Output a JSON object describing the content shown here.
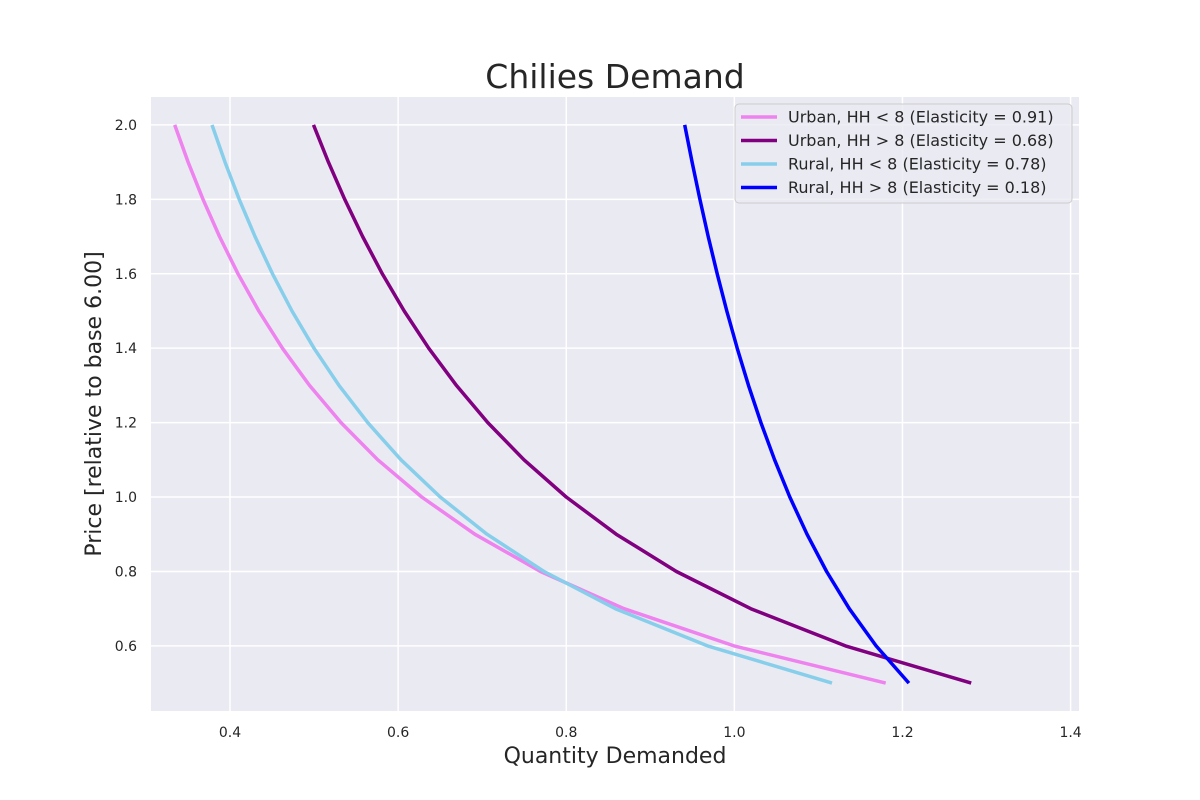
{
  "chart_data": {
    "type": "line",
    "title": "Chilies Demand",
    "xlabel": "Quantity Demanded",
    "ylabel": "Price [relative to base 6.00]",
    "xlim": [
      0.306,
      1.41
    ],
    "ylim": [
      0.425,
      2.075
    ],
    "xticks": [
      0.4,
      0.6,
      0.8,
      1.0,
      1.2,
      1.4
    ],
    "xtick_labels": [
      "0.4",
      "0.6",
      "0.8",
      "1.0",
      "1.2",
      "1.4"
    ],
    "yticks": [
      0.6,
      0.8,
      1.0,
      1.2,
      1.4,
      1.6,
      1.8,
      2.0
    ],
    "ytick_labels": [
      "0.6",
      "0.8",
      "1.0",
      "1.2",
      "1.4",
      "1.6",
      "1.8",
      "2.0"
    ],
    "grid": true,
    "legend_position": "top-right",
    "price_range": [
      0.5,
      2.0
    ],
    "series": [
      {
        "name": "Urban, HH < 8 (Elasticity = 0.91)",
        "color": "#ee82ee",
        "elasticity": 0.91,
        "quantity_at_price_1": 0.628
      },
      {
        "name": "Urban, HH > 8 (Elasticity = 0.68)",
        "color": "#800080",
        "elasticity": 0.68,
        "quantity_at_price_1": 0.8
      },
      {
        "name": "Rural, HH < 8  (Elasticity = 0.78)",
        "color": "#87ceeb",
        "elasticity": 0.78,
        "quantity_at_price_1": 0.65
      },
      {
        "name": "Rural, HH > 8 (Elasticity = 0.18)",
        "color": "#0000ff",
        "elasticity": 0.18,
        "quantity_at_price_1": 1.066
      }
    ]
  }
}
